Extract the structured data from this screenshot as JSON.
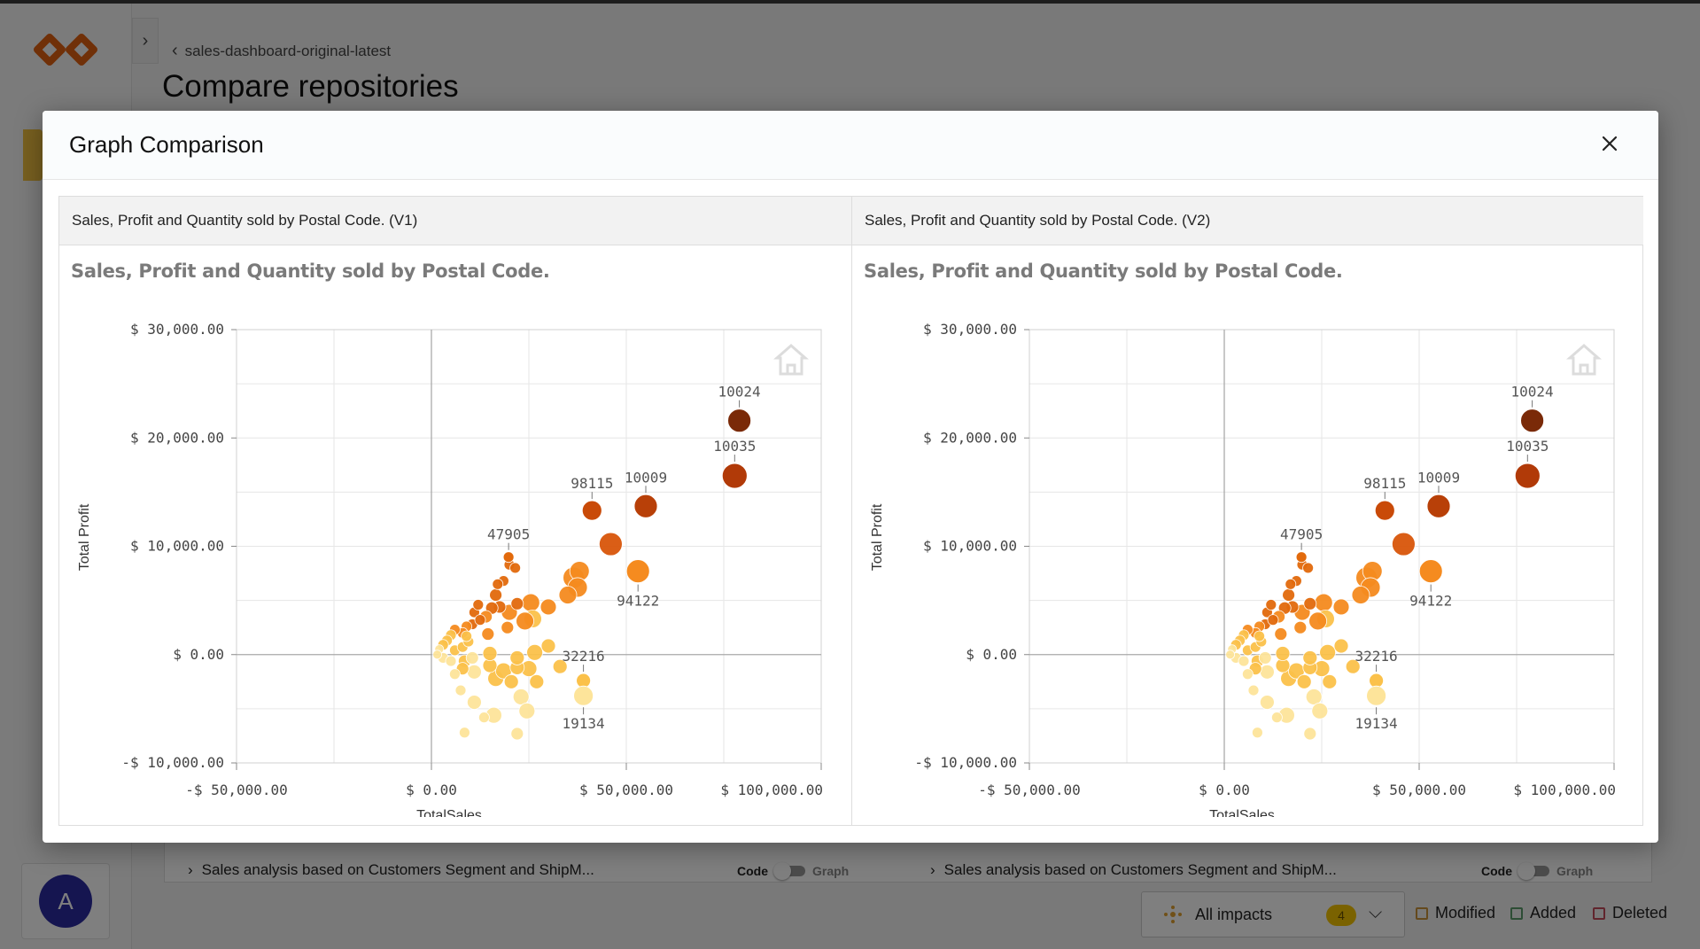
{
  "app": {
    "breadcrumb": "sales-dashboard-original-latest",
    "page_title": "Compare repositories",
    "avatar_initial": "A"
  },
  "background_rows": [
    {
      "title": "Sales analysis based on Customers Segment and ShipM...",
      "code_label": "Code",
      "graph_label": "Graph"
    },
    {
      "title": "Sales analysis based on Customers Segment and ShipM...",
      "code_label": "Code",
      "graph_label": "Graph"
    }
  ],
  "impacts": {
    "label": "All impacts",
    "count": "4"
  },
  "legend": [
    {
      "label": "Modified",
      "color": "#c8923a"
    },
    {
      "label": "Added",
      "color": "#5a9a6a"
    },
    {
      "label": "Deleted",
      "color": "#c24a5a"
    }
  ],
  "modal": {
    "title": "Graph Comparison",
    "panels": [
      {
        "header": "Sales, Profit and Quantity sold by Postal Code. (V1)",
        "chart_title": "Sales, Profit and Quantity sold by Postal Code."
      },
      {
        "header": "Sales, Profit and Quantity sold by Postal Code. (V2)",
        "chart_title": "Sales, Profit and Quantity sold by Postal Code."
      }
    ]
  },
  "chart_data": [
    {
      "type": "scatter",
      "title": "Sales, Profit and Quantity sold by Postal Code.",
      "xlabel": "TotalSales",
      "ylabel": "Total Profit",
      "xlim": [
        -50000,
        100000
      ],
      "ylim": [
        -10000,
        30000
      ],
      "x_ticks": [
        -50000,
        0,
        50000,
        100000
      ],
      "x_tick_labels": [
        "-$ 50,000.00",
        "$ 0.00",
        "$ 50,000.00",
        "$ 100,000.00"
      ],
      "y_ticks": [
        -10000,
        0,
        10000,
        20000,
        30000
      ],
      "y_tick_labels": [
        "-$ 10,000.00",
        "$ 0.00",
        "$ 10,000.00",
        "$ 20,000.00",
        "$ 30,000.00"
      ],
      "grid": true,
      "colors": [
        "#fde49a",
        "#fbc14a",
        "#f58b1f",
        "#e26a0c",
        "#c2440a",
        "#7a2a08"
      ],
      "labeled_points": [
        {
          "label": "10024",
          "x": 79000,
          "y": 21600,
          "size": 13,
          "color": "#7a2a08"
        },
        {
          "label": "10035",
          "x": 77800,
          "y": 16500,
          "size": 14,
          "color": "#b13a08"
        },
        {
          "label": "10009",
          "x": 55000,
          "y": 13700,
          "size": 13,
          "color": "#b84008"
        },
        {
          "label": "98115",
          "x": 41200,
          "y": 13300,
          "size": 11,
          "color": "#c94a08"
        },
        {
          "label": "47905",
          "x": 19800,
          "y": 9000,
          "size": 6,
          "color": "#e26a0c"
        },
        {
          "label": "94122",
          "x": 53000,
          "y": 7700,
          "size": 13,
          "color": "#f58b1f"
        },
        {
          "label": "32216",
          "x": 39000,
          "y": -2400,
          "size": 8,
          "color": "#fbc14a"
        },
        {
          "label": "19134",
          "x": 39000,
          "y": -3800,
          "size": 11,
          "color": "#fde49a"
        }
      ],
      "points": [
        [
          46000,
          10200,
          13,
          "#d9560a"
        ],
        [
          38000,
          7700,
          11,
          "#f58b1f"
        ],
        [
          36500,
          7100,
          12,
          "#f58b1f"
        ],
        [
          37500,
          6200,
          11,
          "#f58b1f"
        ],
        [
          35000,
          5500,
          10,
          "#f58b1f"
        ],
        [
          30000,
          4400,
          9,
          "#f58b1f"
        ],
        [
          25500,
          4800,
          10,
          "#f58b1f"
        ],
        [
          26000,
          3300,
          10,
          "#fbc14a"
        ],
        [
          24000,
          3100,
          10,
          "#f58b1f"
        ],
        [
          20000,
          3900,
          9,
          "#f58b1f"
        ],
        [
          22000,
          4700,
          7,
          "#e26a0c"
        ],
        [
          17500,
          4400,
          7,
          "#e26a0c"
        ],
        [
          16500,
          5500,
          7,
          "#e26a0c"
        ],
        [
          15500,
          4300,
          7,
          "#e26a0c"
        ],
        [
          14000,
          3500,
          7,
          "#f58b1f"
        ],
        [
          11000,
          3900,
          6,
          "#e26a0c"
        ],
        [
          10500,
          2800,
          6,
          "#e26a0c"
        ],
        [
          9000,
          2600,
          6,
          "#f58b1f"
        ],
        [
          8000,
          2000,
          6,
          "#f58b1f"
        ],
        [
          6000,
          2300,
          6,
          "#f58b1f"
        ],
        [
          5000,
          1800,
          6,
          "#fbc14a"
        ],
        [
          4000,
          1300,
          6,
          "#fbc14a"
        ],
        [
          3000,
          900,
          6,
          "#fbc14a"
        ],
        [
          2000,
          500,
          5,
          "#fde49a"
        ],
        [
          1500,
          0,
          5,
          "#fde49a"
        ],
        [
          3000,
          -300,
          6,
          "#fde49a"
        ],
        [
          5000,
          -600,
          6,
          "#fde49a"
        ],
        [
          6000,
          400,
          6,
          "#fbc14a"
        ],
        [
          8000,
          700,
          6,
          "#fbc14a"
        ],
        [
          9500,
          1200,
          6,
          "#fbc14a"
        ],
        [
          14500,
          1900,
          7,
          "#f58b1f"
        ],
        [
          19500,
          2500,
          7,
          "#f58b1f"
        ],
        [
          20000,
          8300,
          6,
          "#e26a0c"
        ],
        [
          21500,
          8000,
          6,
          "#e26a0c"
        ],
        [
          18500,
          6800,
          6,
          "#e26a0c"
        ],
        [
          17000,
          6500,
          6,
          "#e26a0c"
        ],
        [
          12500,
          3200,
          6,
          "#e26a0c"
        ],
        [
          8500,
          -600,
          7,
          "#fbc14a"
        ],
        [
          8000,
          -1300,
          7,
          "#fbc14a"
        ],
        [
          11000,
          -1600,
          8,
          "#fde49a"
        ],
        [
          15000,
          -1000,
          8,
          "#fbc14a"
        ],
        [
          16500,
          -2200,
          9,
          "#fbc14a"
        ],
        [
          18500,
          -1500,
          9,
          "#fbc14a"
        ],
        [
          20500,
          -2500,
          8,
          "#fbc14a"
        ],
        [
          22000,
          -1200,
          8,
          "#fbc14a"
        ],
        [
          25000,
          -1300,
          9,
          "#fbc14a"
        ],
        [
          22000,
          -300,
          8,
          "#fbc14a"
        ],
        [
          26500,
          200,
          9,
          "#fbc14a"
        ],
        [
          15000,
          100,
          8,
          "#fbc14a"
        ],
        [
          10500,
          -300,
          7,
          "#fde49a"
        ],
        [
          6000,
          -1800,
          6,
          "#fde49a"
        ],
        [
          7500,
          -3300,
          6,
          "#fde49a"
        ],
        [
          11000,
          -4400,
          8,
          "#fde49a"
        ],
        [
          16000,
          -5600,
          9,
          "#fde49a"
        ],
        [
          23000,
          -3900,
          9,
          "#fde49a"
        ],
        [
          24500,
          -5200,
          9,
          "#fde49a"
        ],
        [
          13500,
          -5800,
          6,
          "#fde49a"
        ],
        [
          8500,
          -7200,
          6,
          "#fde49a"
        ],
        [
          22000,
          -7300,
          7,
          "#fde49a"
        ],
        [
          27000,
          -2500,
          8,
          "#fbc14a"
        ],
        [
          33000,
          -1100,
          8,
          "#fbc14a"
        ],
        [
          30000,
          800,
          8,
          "#fbc14a"
        ],
        [
          12000,
          4600,
          6,
          "#e26a0c"
        ],
        [
          9000,
          1700,
          6,
          "#fbc14a"
        ]
      ]
    },
    {
      "type": "scatter",
      "title": "Sales, Profit and Quantity sold by Postal Code.",
      "xlabel": "TotalSales",
      "ylabel": "Total Profit",
      "xlim": [
        -50000,
        100000
      ],
      "ylim": [
        -10000,
        30000
      ],
      "x_ticks": [
        -50000,
        0,
        50000,
        100000
      ],
      "x_tick_labels": [
        "-$ 50,000.00",
        "$ 0.00",
        "$ 50,000.00",
        "$ 100,000.00"
      ],
      "y_ticks": [
        -10000,
        0,
        10000,
        20000,
        30000
      ],
      "y_tick_labels": [
        "-$ 10,000.00",
        "$ 0.00",
        "$ 10,000.00",
        "$ 20,000.00",
        "$ 30,000.00"
      ],
      "grid": true,
      "colors": [
        "#fde49a",
        "#fbc14a",
        "#f58b1f",
        "#e26a0c",
        "#c2440a",
        "#7a2a08"
      ],
      "labeled_points": [
        {
          "label": "10024",
          "x": 79000,
          "y": 21600,
          "size": 13,
          "color": "#7a2a08"
        },
        {
          "label": "10035",
          "x": 77800,
          "y": 16500,
          "size": 14,
          "color": "#b13a08"
        },
        {
          "label": "10009",
          "x": 55000,
          "y": 13700,
          "size": 13,
          "color": "#b84008"
        },
        {
          "label": "98115",
          "x": 41200,
          "y": 13300,
          "size": 11,
          "color": "#c94a08"
        },
        {
          "label": "47905",
          "x": 19800,
          "y": 9000,
          "size": 6,
          "color": "#e26a0c"
        },
        {
          "label": "94122",
          "x": 53000,
          "y": 7700,
          "size": 13,
          "color": "#f58b1f"
        },
        {
          "label": "32216",
          "x": 39000,
          "y": -2400,
          "size": 8,
          "color": "#fbc14a"
        },
        {
          "label": "19134",
          "x": 39000,
          "y": -3800,
          "size": 11,
          "color": "#fde49a"
        }
      ],
      "points": [
        [
          46000,
          10200,
          13,
          "#d9560a"
        ],
        [
          38000,
          7700,
          11,
          "#f58b1f"
        ],
        [
          36500,
          7100,
          12,
          "#f58b1f"
        ],
        [
          37500,
          6200,
          11,
          "#f58b1f"
        ],
        [
          35000,
          5500,
          10,
          "#f58b1f"
        ],
        [
          30000,
          4400,
          9,
          "#f58b1f"
        ],
        [
          25500,
          4800,
          10,
          "#f58b1f"
        ],
        [
          26000,
          3300,
          10,
          "#fbc14a"
        ],
        [
          24000,
          3100,
          10,
          "#f58b1f"
        ],
        [
          20000,
          3900,
          9,
          "#f58b1f"
        ],
        [
          22000,
          4700,
          7,
          "#e26a0c"
        ],
        [
          17500,
          4400,
          7,
          "#e26a0c"
        ],
        [
          16500,
          5500,
          7,
          "#e26a0c"
        ],
        [
          15500,
          4300,
          7,
          "#e26a0c"
        ],
        [
          14000,
          3500,
          7,
          "#f58b1f"
        ],
        [
          11000,
          3900,
          6,
          "#e26a0c"
        ],
        [
          10500,
          2800,
          6,
          "#e26a0c"
        ],
        [
          9000,
          2600,
          6,
          "#f58b1f"
        ],
        [
          8000,
          2000,
          6,
          "#f58b1f"
        ],
        [
          6000,
          2300,
          6,
          "#f58b1f"
        ],
        [
          5000,
          1800,
          6,
          "#fbc14a"
        ],
        [
          4000,
          1300,
          6,
          "#fbc14a"
        ],
        [
          3000,
          900,
          6,
          "#fbc14a"
        ],
        [
          2000,
          500,
          5,
          "#fde49a"
        ],
        [
          1500,
          0,
          5,
          "#fde49a"
        ],
        [
          3000,
          -300,
          6,
          "#fde49a"
        ],
        [
          5000,
          -600,
          6,
          "#fde49a"
        ],
        [
          6000,
          400,
          6,
          "#fbc14a"
        ],
        [
          8000,
          700,
          6,
          "#fbc14a"
        ],
        [
          9500,
          1200,
          6,
          "#fbc14a"
        ],
        [
          14500,
          1900,
          7,
          "#f58b1f"
        ],
        [
          19500,
          2500,
          7,
          "#f58b1f"
        ],
        [
          20000,
          8300,
          6,
          "#e26a0c"
        ],
        [
          21500,
          8000,
          6,
          "#e26a0c"
        ],
        [
          18500,
          6800,
          6,
          "#e26a0c"
        ],
        [
          17000,
          6500,
          6,
          "#e26a0c"
        ],
        [
          12500,
          3200,
          6,
          "#e26a0c"
        ],
        [
          8500,
          -600,
          7,
          "#fbc14a"
        ],
        [
          8000,
          -1300,
          7,
          "#fbc14a"
        ],
        [
          11000,
          -1600,
          8,
          "#fde49a"
        ],
        [
          15000,
          -1000,
          8,
          "#fbc14a"
        ],
        [
          16500,
          -2200,
          9,
          "#fbc14a"
        ],
        [
          18500,
          -1500,
          9,
          "#fbc14a"
        ],
        [
          20500,
          -2500,
          8,
          "#fbc14a"
        ],
        [
          22000,
          -1200,
          8,
          "#fbc14a"
        ],
        [
          25000,
          -1300,
          9,
          "#fbc14a"
        ],
        [
          22000,
          -300,
          8,
          "#fbc14a"
        ],
        [
          26500,
          200,
          9,
          "#fbc14a"
        ],
        [
          15000,
          100,
          8,
          "#fbc14a"
        ],
        [
          10500,
          -300,
          7,
          "#fde49a"
        ],
        [
          6000,
          -1800,
          6,
          "#fde49a"
        ],
        [
          7500,
          -3300,
          6,
          "#fde49a"
        ],
        [
          11000,
          -4400,
          8,
          "#fde49a"
        ],
        [
          16000,
          -5600,
          9,
          "#fde49a"
        ],
        [
          23000,
          -3900,
          9,
          "#fde49a"
        ],
        [
          24500,
          -5200,
          9,
          "#fde49a"
        ],
        [
          13500,
          -5800,
          6,
          "#fde49a"
        ],
        [
          8500,
          -7200,
          6,
          "#fde49a"
        ],
        [
          22000,
          -7300,
          7,
          "#fde49a"
        ],
        [
          27000,
          -2500,
          8,
          "#fbc14a"
        ],
        [
          33000,
          -1100,
          8,
          "#fbc14a"
        ],
        [
          30000,
          800,
          8,
          "#fbc14a"
        ],
        [
          12000,
          4600,
          6,
          "#e26a0c"
        ],
        [
          9000,
          1700,
          6,
          "#fbc14a"
        ]
      ]
    }
  ]
}
